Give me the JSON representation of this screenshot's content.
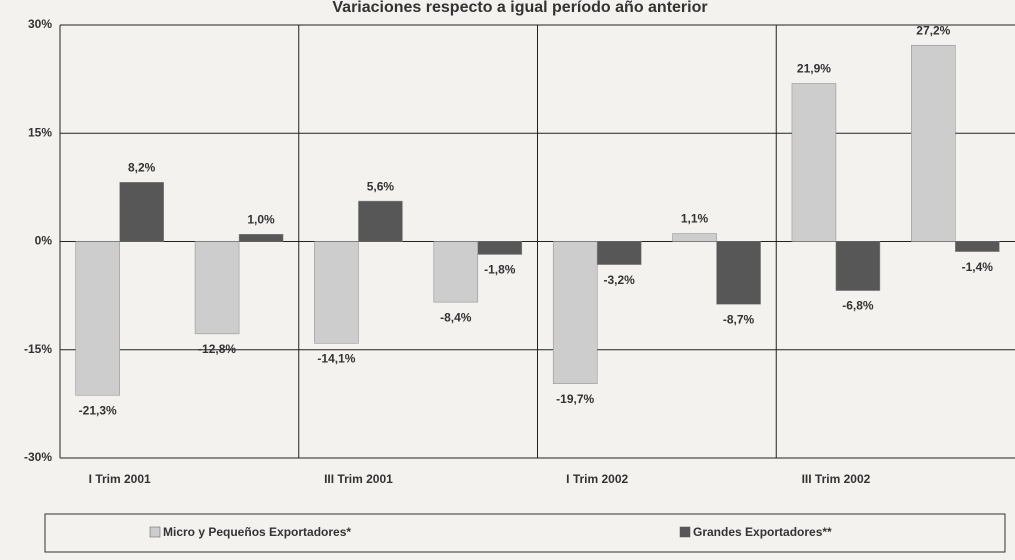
{
  "chart_data": {
    "type": "bar",
    "title": "Variaciones respecto a igual período año anterior",
    "categories": [
      "I Trim 2001",
      null,
      "III Trim 2001",
      null,
      "I Trim 2002",
      null,
      "III Trim 2002",
      null
    ],
    "series": [
      {
        "name": "Micro y Pequeños Exportadores*",
        "color": "#cdcdcd",
        "values": [
          -21.3,
          -12.8,
          -14.1,
          -8.4,
          -19.7,
          1.1,
          21.9,
          27.2
        ],
        "value_labels": [
          "-21,3%",
          "-12,8%",
          "-14,1%",
          "-8,4%",
          "-19,7%",
          "1,1%",
          "21,9%",
          "27,2%"
        ]
      },
      {
        "name": "Grandes Exportadores**",
        "color": "#575757",
        "values": [
          8.2,
          1.0,
          5.6,
          -1.8,
          -3.2,
          -8.7,
          -6.8,
          -1.4
        ],
        "value_labels": [
          "8,2%",
          "1,0%",
          "5,6%",
          "-1,8%",
          "-3,2%",
          "-8,7%",
          "-6,8%",
          "-1,4%"
        ]
      }
    ],
    "ylim": [
      -30,
      30
    ],
    "yticks": [
      {
        "value": -30,
        "label": "-30%"
      },
      {
        "value": -15,
        "label": "-15%"
      },
      {
        "value": 0,
        "label": "0%"
      },
      {
        "value": 15,
        "label": "15%"
      },
      {
        "value": 30,
        "label": "30%"
      }
    ],
    "grid": true
  }
}
